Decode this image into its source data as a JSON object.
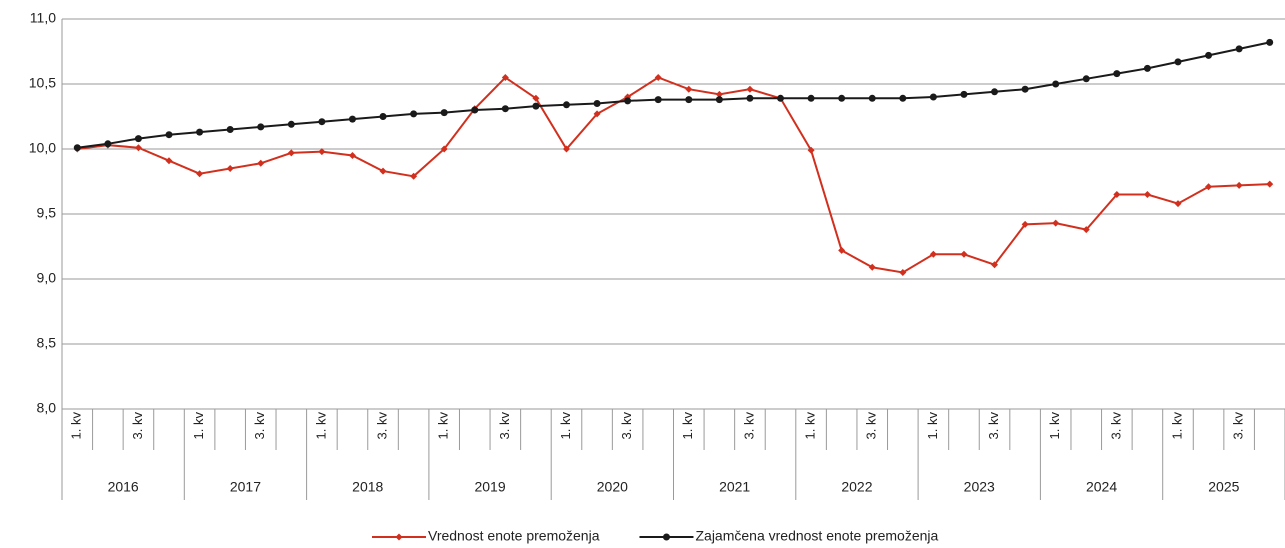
{
  "chart_data": {
    "type": "line",
    "categories": [
      "1. kv",
      null,
      "3. kv",
      null,
      "1. kv",
      null,
      "3. kv",
      null,
      "1. kv",
      null,
      "3. kv",
      null,
      "1. kv",
      null,
      "3. kv",
      null,
      "1. kv",
      null,
      "3. kv",
      null,
      "1. kv",
      null,
      "3. kv",
      null,
      "1. kv",
      null,
      "3. kv",
      null,
      "1. kv",
      null,
      "3. kv",
      null,
      "1. kv",
      null,
      "3. kv",
      null,
      "1. kv",
      null,
      "3. kv",
      null
    ],
    "groups": [
      "2016",
      "2017",
      "2018",
      "2019",
      "2020",
      "2021",
      "2022",
      "2023",
      "2024",
      "2025"
    ],
    "series": [
      {
        "name": "Vrednost enote premoženja",
        "color": "#d2301e",
        "marker": "diamond",
        "values": [
          10.0,
          10.03,
          10.01,
          9.91,
          9.81,
          9.85,
          9.89,
          9.97,
          9.98,
          9.95,
          9.83,
          9.79,
          10.0,
          10.31,
          10.55,
          10.39,
          10.0,
          10.27,
          10.4,
          10.55,
          10.46,
          10.42,
          10.46,
          10.39,
          9.99,
          9.22,
          9.09,
          9.05,
          9.19,
          9.19,
          9.11,
          9.42,
          9.43,
          9.38,
          9.65,
          9.65,
          9.58,
          9.71,
          9.72,
          9.73
        ]
      },
      {
        "name": "Zajamčena vrednost enote premoženja",
        "color": "#1a1a1a",
        "marker": "circle",
        "values": [
          10.01,
          10.04,
          10.08,
          10.11,
          10.13,
          10.15,
          10.17,
          10.19,
          10.21,
          10.23,
          10.25,
          10.27,
          10.28,
          10.3,
          10.31,
          10.33,
          10.34,
          10.35,
          10.37,
          10.38,
          10.38,
          10.38,
          10.39,
          10.39,
          10.39,
          10.39,
          10.39,
          10.39,
          10.4,
          10.42,
          10.44,
          10.46,
          10.5,
          10.54,
          10.58,
          10.62,
          10.67,
          10.72,
          10.77,
          10.82
        ]
      }
    ],
    "ylim": [
      8.0,
      11.0
    ],
    "yticks": [
      {
        "value": 8.0,
        "label": "8,0"
      },
      {
        "value": 8.5,
        "label": "8,5"
      },
      {
        "value": 9.0,
        "label": "9,0"
      },
      {
        "value": 9.5,
        "label": "9,5"
      },
      {
        "value": 10.0,
        "label": "10,0"
      },
      {
        "value": 10.5,
        "label": "10,5"
      },
      {
        "value": 11.0,
        "label": "11,0"
      }
    ],
    "grid": true,
    "legend": "bottom"
  }
}
